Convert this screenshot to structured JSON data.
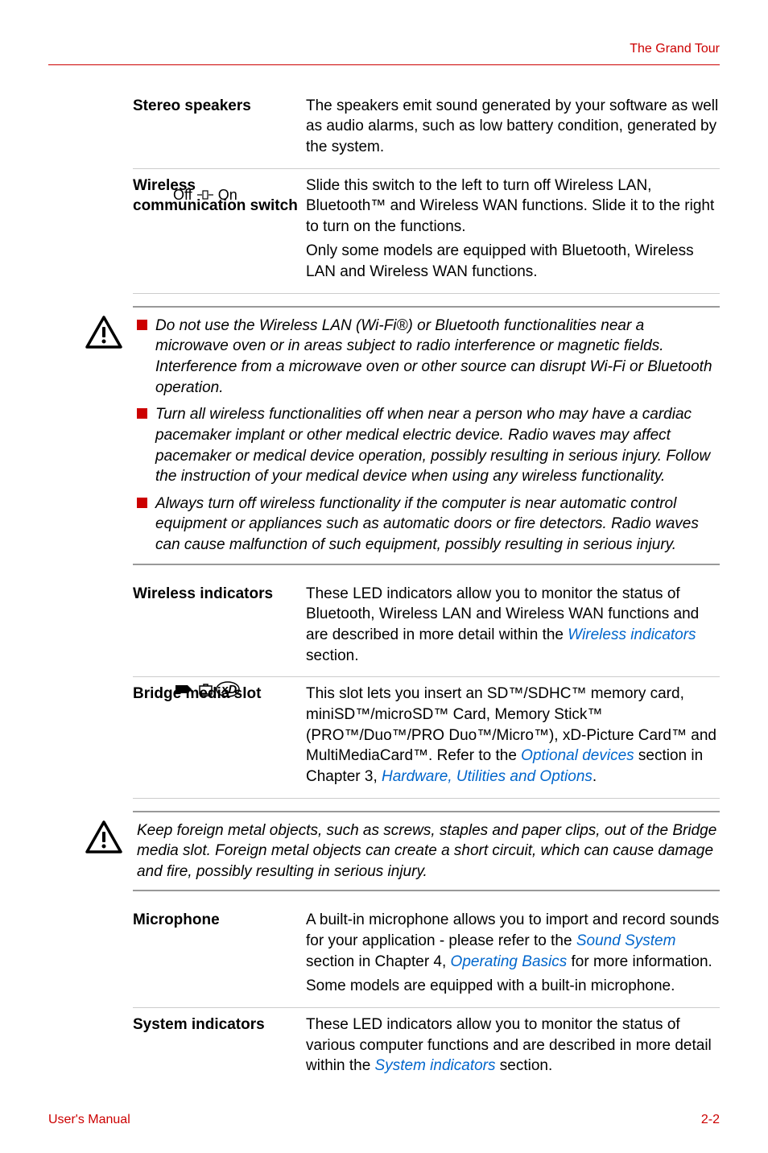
{
  "header": {
    "title": "The Grand Tour"
  },
  "table1": {
    "rows": [
      {
        "label": "Stereo speakers",
        "content": [
          "The speakers emit sound generated by your software as well as audio alarms, such as low battery condition, generated by the system."
        ]
      },
      {
        "label": "Wireless communication switch",
        "content": [
          "Slide this switch to the left to turn off Wireless LAN, Bluetooth™ and Wireless WAN functions. Slide it to the right to turn on the functions.",
          "Only some models are equipped with Bluetooth, Wireless LAN and Wireless WAN functions."
        ],
        "leftIcon": "off-on"
      }
    ]
  },
  "warning1": {
    "bullets": [
      "Do not use the Wireless LAN (Wi-Fi®) or Bluetooth functionalities near a microwave oven or in areas subject to radio interference or magnetic fields. Interference from a microwave oven or other source can disrupt Wi-Fi or Bluetooth operation.",
      "Turn all wireless functionalities off when near a person who may have a cardiac pacemaker implant or other medical electric device. Radio waves may affect pacemaker or medical device operation, possibly resulting in serious injury. Follow the instruction of your medical device when using any wireless functionality.",
      "Always turn off wireless functionality if the computer is near automatic control equipment or appliances such as automatic doors or fire detectors. Radio waves can cause malfunction of such equipment, possibly resulting in serious injury."
    ]
  },
  "table2": {
    "rows": [
      {
        "label": "Wireless indicators",
        "parts": [
          {
            "text": "These LED indicators allow you to monitor the status of Bluetooth, Wireless LAN and Wireless WAN functions and are described in more detail within the "
          },
          {
            "text": "Wireless indicators",
            "link": true
          },
          {
            "text": " section."
          }
        ]
      },
      {
        "label": "Bridge media slot",
        "parts": [
          {
            "text": "This slot lets you insert an SD™/SDHC™ memory card, miniSD™/microSD™ Card, Memory Stick™ (PRO™/Duo™/PRO Duo™/Micro™), xD-Picture Card™ and MultiMediaCard™. Refer to the "
          },
          {
            "text": "Optional devices",
            "link": true
          },
          {
            "text": " section in Chapter 3, "
          },
          {
            "text": "Hardware, Utilities and Options",
            "link": true
          },
          {
            "text": "."
          }
        ],
        "leftIcon": "media"
      }
    ]
  },
  "warning2": {
    "text": "Keep foreign metal objects, such as screws, staples and paper clips, out of the Bridge media slot. Foreign metal objects can create a short circuit, which can cause damage and fire, possibly resulting in serious injury."
  },
  "table3": {
    "rows": [
      {
        "label": "Microphone",
        "contentParts": [
          [
            {
              "text": "A built-in microphone allows you to import and record sounds for your application - please refer to the "
            },
            {
              "text": "Sound System",
              "link": true
            },
            {
              "text": " section in Chapter 4, "
            },
            {
              "text": "Operating Basics",
              "link": true
            },
            {
              "text": " for more information."
            }
          ],
          [
            {
              "text": "Some models are equipped with a built-in microphone."
            }
          ]
        ]
      },
      {
        "label": "System indicators",
        "contentParts": [
          [
            {
              "text": "These LED indicators allow you to monitor the status of various computer functions and are described in more detail within the "
            },
            {
              "text": "System indicators",
              "link": true
            },
            {
              "text": " section."
            }
          ]
        ]
      }
    ]
  },
  "footer": {
    "left": "User's Manual",
    "right": "2-2"
  },
  "offOn": {
    "off": "Off",
    "on": "On"
  }
}
